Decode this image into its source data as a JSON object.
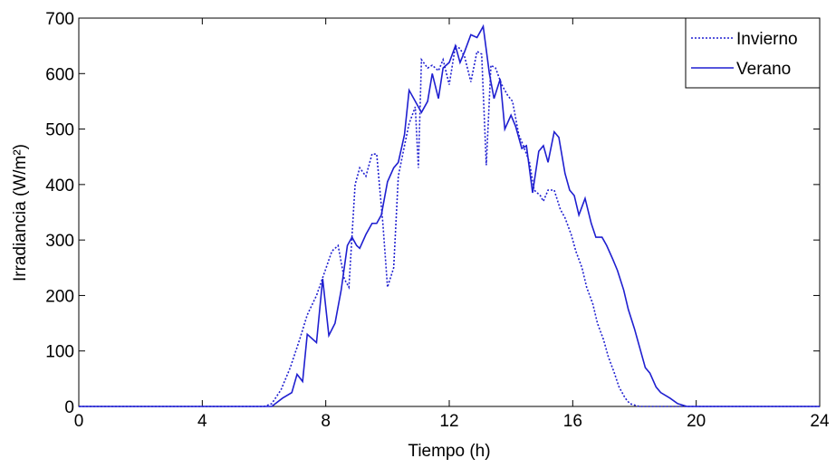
{
  "chart_data": {
    "type": "line",
    "xlabel": "Tiempo (h)",
    "ylabel": "Irradiancia (W/m²)",
    "xlim": [
      0,
      24
    ],
    "xticks": [
      0,
      4,
      8,
      12,
      16,
      20,
      24
    ],
    "ylim": [
      0,
      700
    ],
    "yticks": [
      0,
      100,
      200,
      300,
      400,
      500,
      600,
      700
    ],
    "grid": false,
    "legend": "upper right",
    "series": [
      {
        "name": "Invierno",
        "color": "#1f1fd0",
        "style": "dotted",
        "x": [
          0,
          6.0,
          6.25,
          6.55,
          6.85,
          7.15,
          7.4,
          7.7,
          7.95,
          8.2,
          8.4,
          8.6,
          8.75,
          8.95,
          9.1,
          9.3,
          9.5,
          9.65,
          9.85,
          10.0,
          10.2,
          10.35,
          10.55,
          10.7,
          10.9,
          11.0,
          11.1,
          11.3,
          11.45,
          11.65,
          11.8,
          12.0,
          12.2,
          12.35,
          12.5,
          12.7,
          12.9,
          13.05,
          13.2,
          13.35,
          13.5,
          13.7,
          13.9,
          14.05,
          14.25,
          14.4,
          14.6,
          14.75,
          14.95,
          15.05,
          15.2,
          15.4,
          15.6,
          15.75,
          15.95,
          16.1,
          16.3,
          16.45,
          16.65,
          16.8,
          17.0,
          17.15,
          17.35,
          17.5,
          17.7,
          17.85,
          18.15,
          24
        ],
        "values": [
          0,
          0,
          5,
          30,
          70,
          120,
          165,
          200,
          240,
          280,
          290,
          230,
          215,
          400,
          430,
          415,
          455,
          455,
          330,
          215,
          250,
          415,
          470,
          510,
          540,
          430,
          625,
          610,
          615,
          605,
          625,
          580,
          650,
          645,
          630,
          585,
          640,
          635,
          435,
          615,
          610,
          580,
          560,
          550,
          490,
          470,
          440,
          390,
          380,
          370,
          390,
          390,
          355,
          340,
          310,
          280,
          250,
          215,
          185,
          150,
          120,
          90,
          60,
          35,
          15,
          5,
          0,
          0
        ]
      },
      {
        "name": "Verano",
        "color": "#1f1fd0",
        "style": "solid",
        "x": [
          0,
          6.25,
          6.6,
          6.9,
          7.07,
          7.25,
          7.4,
          7.7,
          7.9,
          8.1,
          8.3,
          8.5,
          8.7,
          8.85,
          9.0,
          9.1,
          9.3,
          9.5,
          9.65,
          9.8,
          10.0,
          10.2,
          10.35,
          10.55,
          10.7,
          10.95,
          11.1,
          11.3,
          11.45,
          11.65,
          11.8,
          12.0,
          12.2,
          12.35,
          12.5,
          12.7,
          12.9,
          13.1,
          13.3,
          13.45,
          13.65,
          13.8,
          14.0,
          14.15,
          14.35,
          14.5,
          14.7,
          14.9,
          15.05,
          15.2,
          15.4,
          15.55,
          15.75,
          15.9,
          16.05,
          16.2,
          16.4,
          16.6,
          16.75,
          16.95,
          17.1,
          17.3,
          17.45,
          17.65,
          17.8,
          18.0,
          18.15,
          18.35,
          18.5,
          18.7,
          18.85,
          19.15,
          19.4,
          19.7,
          24
        ],
        "values": [
          0,
          0,
          15,
          25,
          58,
          45,
          130,
          115,
          230,
          128,
          150,
          210,
          290,
          305,
          290,
          285,
          310,
          330,
          330,
          345,
          405,
          430,
          440,
          490,
          570,
          545,
          530,
          550,
          600,
          555,
          610,
          620,
          650,
          620,
          640,
          670,
          665,
          685,
          600,
          555,
          590,
          500,
          525,
          505,
          465,
          470,
          385,
          460,
          470,
          440,
          495,
          485,
          420,
          390,
          380,
          345,
          375,
          330,
          305,
          305,
          290,
          265,
          245,
          210,
          175,
          140,
          110,
          70,
          60,
          35,
          25,
          15,
          5,
          0,
          0
        ]
      }
    ]
  }
}
